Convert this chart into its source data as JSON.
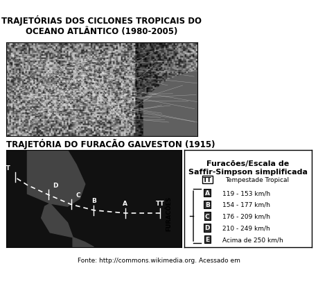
{
  "title1": "TRAJETÓRIAS DOS CICLONES TROPICAIS DO\nOCEANO ATLÂNTICO (1980-2005)",
  "title2": "TRAJETÓRIA DO FURACÃO GALVESTON (1915)",
  "legend_title": "Furacões/Escala de\nSaffir-Simpson simplificada",
  "tt_label": "TT Tempestade Tropical",
  "hurricane_entries": [
    {
      "letter": "A",
      "range": "119 - 153 km/h"
    },
    {
      "letter": "B",
      "range": "154 - 177 km/h"
    },
    {
      "letter": "C",
      "range": "176 - 209 km/h"
    },
    {
      "letter": "D",
      "range": "210 - 249 km/h"
    },
    {
      "letter": "E",
      "range": "Acima de 250 km/h"
    }
  ],
  "furacoes_label": "FURACÕES",
  "footer": "Fonte: http://commons.wikimedia.org. Acessado em",
  "bg_color": "#ffffff",
  "map_bg": "#808080",
  "map_bg2": "#2a2a2a",
  "box_color": "#e8e8e8",
  "title1_fontsize": 8.5,
  "title2_fontsize": 8.5,
  "legend_title_fontsize": 8,
  "legend_entry_fontsize": 7.5,
  "footer_fontsize": 6.5
}
